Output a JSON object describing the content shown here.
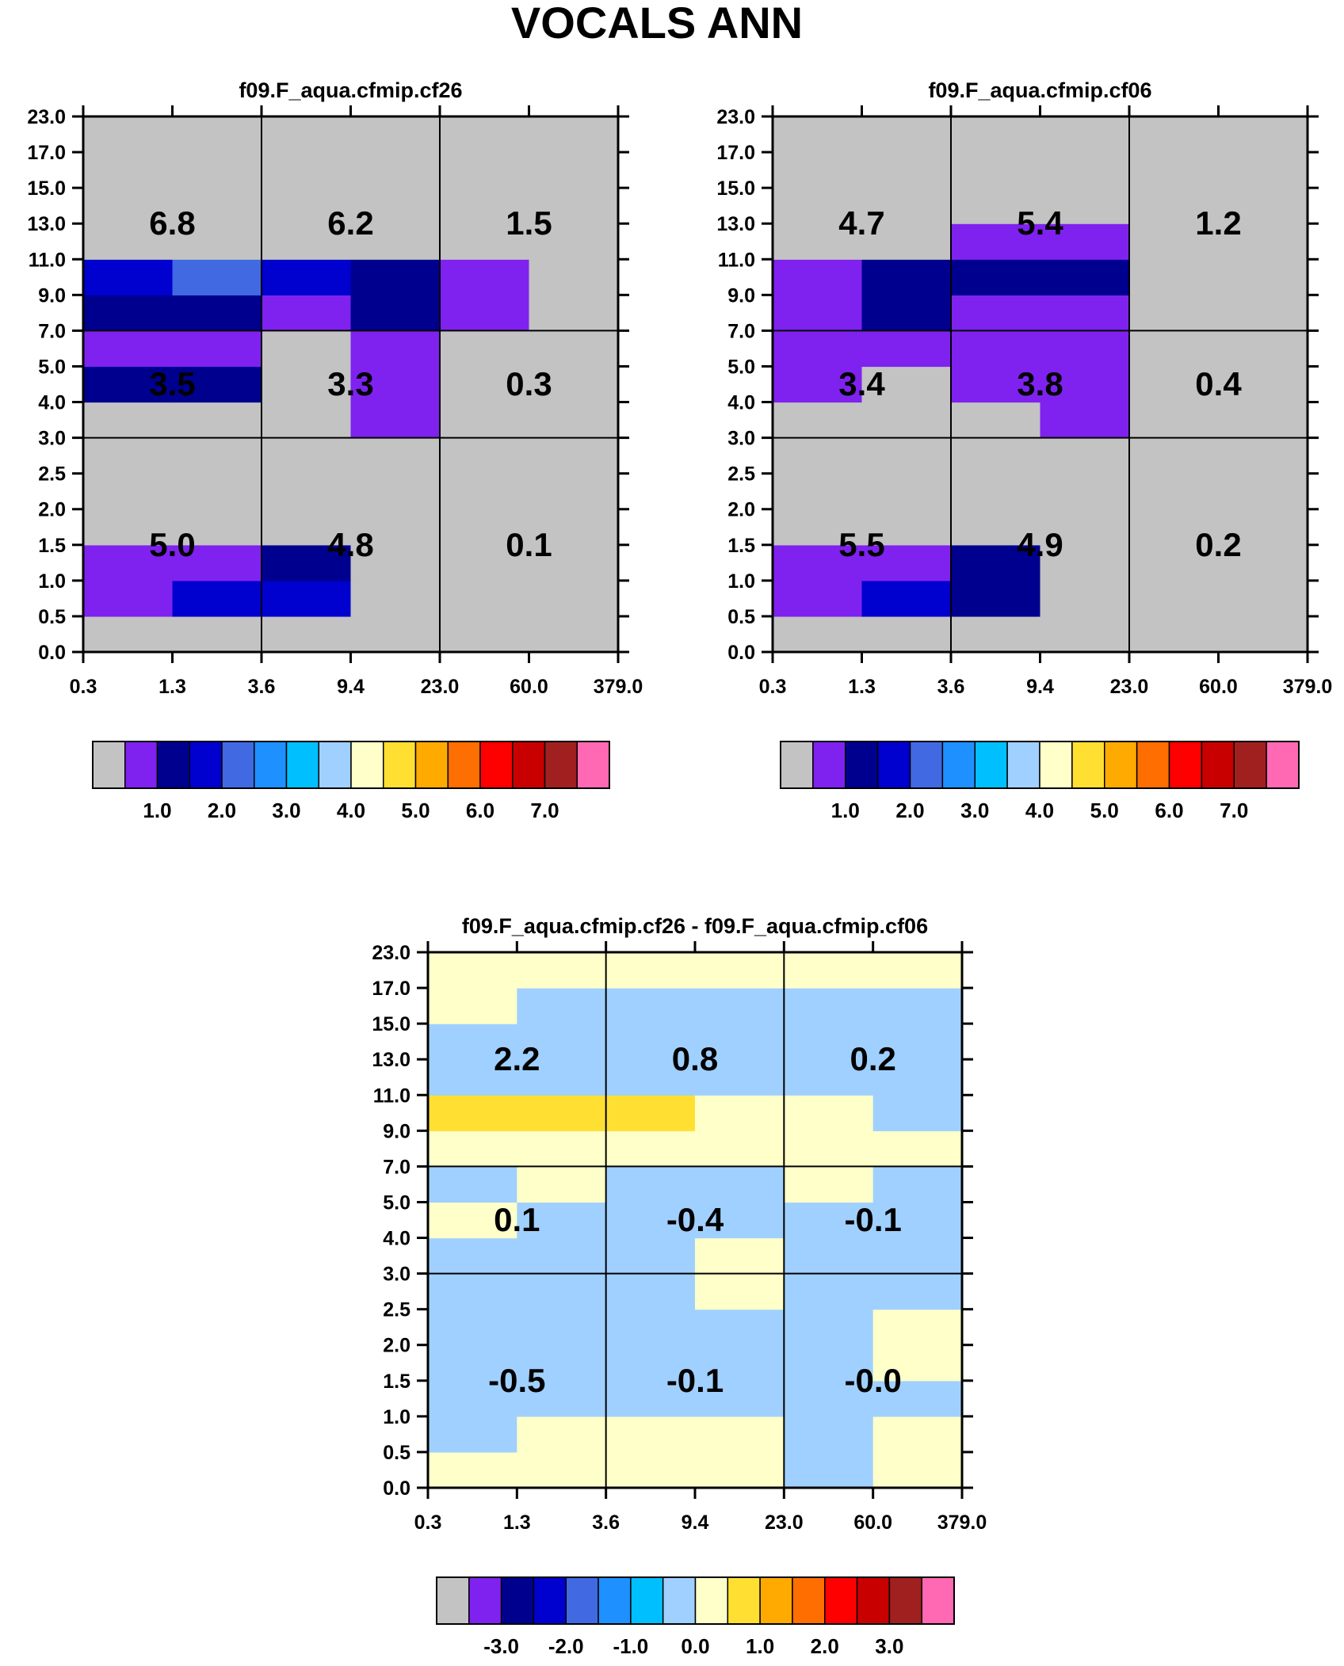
{
  "title": "VOCALS ANN",
  "colors": {
    "palette": [
      "#c3c3c3",
      "#7f22ef",
      "#00008f",
      "#0000cf",
      "#4169e1",
      "#1f90ff",
      "#00bfff",
      "#a0d0ff",
      "#ffffc9",
      "#ffe032",
      "#ffaa00",
      "#ff6e00",
      "#ff0000",
      "#c80000",
      "#a02020",
      "#ff69b4"
    ],
    "cell_outline": "#000000"
  },
  "chart_data": [
    {
      "type": "heatmap",
      "title": "f09.F_aqua.cfmip.cf26",
      "x_ticks": [
        "0.3",
        "1.3",
        "3.6",
        "9.4",
        "23.0",
        "60.0",
        "379.0"
      ],
      "y_ticks": [
        "0.0",
        "0.5",
        "1.0",
        "1.5",
        "2.0",
        "2.5",
        "3.0",
        "4.0",
        "5.0",
        "7.0",
        "9.0",
        "11.0",
        "13.0",
        "15.0",
        "17.0",
        "23.0"
      ],
      "grid_rows": [
        [
          0,
          0,
          0,
          0,
          0,
          0
        ],
        [
          1,
          3,
          3,
          0,
          0,
          0
        ],
        [
          1,
          1,
          2,
          0,
          0,
          0
        ],
        [
          0,
          0,
          0,
          0,
          0,
          0
        ],
        [
          0,
          0,
          0,
          0,
          0,
          0
        ],
        [
          0,
          0,
          0,
          0,
          0,
          0
        ],
        [
          0,
          0,
          0,
          1,
          0,
          0
        ],
        [
          2,
          2,
          0,
          1,
          0,
          0
        ],
        [
          1,
          1,
          0,
          1,
          0,
          0
        ],
        [
          2,
          2,
          1,
          2,
          1,
          0
        ],
        [
          3,
          4,
          3,
          2,
          1,
          0
        ],
        [
          0,
          0,
          0,
          0,
          0,
          0
        ],
        [
          0,
          0,
          0,
          0,
          0,
          0
        ],
        [
          0,
          0,
          0,
          0,
          0,
          0
        ],
        [
          0,
          0,
          0,
          0,
          0,
          0
        ]
      ],
      "sum_labels": [
        [
          "5.0",
          "4.8",
          "0.1"
        ],
        [
          "3.5",
          "3.3",
          "0.3"
        ],
        [
          "6.8",
          "6.2",
          "1.5"
        ]
      ],
      "colorbar_ticks": [
        "1.0",
        "2.0",
        "3.0",
        "4.0",
        "5.0",
        "6.0",
        "7.0"
      ]
    },
    {
      "type": "heatmap",
      "title": "f09.F_aqua.cfmip.cf06",
      "x_ticks": [
        "0.3",
        "1.3",
        "3.6",
        "9.4",
        "23.0",
        "60.0",
        "379.0"
      ],
      "y_ticks": [
        "0.0",
        "0.5",
        "1.0",
        "1.5",
        "2.0",
        "2.5",
        "3.0",
        "4.0",
        "5.0",
        "7.0",
        "9.0",
        "11.0",
        "13.0",
        "15.0",
        "17.0",
        "23.0"
      ],
      "grid_rows": [
        [
          0,
          0,
          0,
          0,
          0,
          0
        ],
        [
          1,
          3,
          2,
          0,
          0,
          0
        ],
        [
          1,
          1,
          2,
          0,
          0,
          0
        ],
        [
          0,
          0,
          0,
          0,
          0,
          0
        ],
        [
          0,
          0,
          0,
          0,
          0,
          0
        ],
        [
          0,
          0,
          0,
          0,
          0,
          0
        ],
        [
          0,
          0,
          0,
          1,
          0,
          0
        ],
        [
          1,
          0,
          1,
          1,
          0,
          0
        ],
        [
          1,
          1,
          1,
          1,
          0,
          0
        ],
        [
          1,
          2,
          1,
          1,
          0,
          0
        ],
        [
          1,
          2,
          2,
          2,
          0,
          0
        ],
        [
          0,
          0,
          1,
          1,
          0,
          0
        ],
        [
          0,
          0,
          0,
          0,
          0,
          0
        ],
        [
          0,
          0,
          0,
          0,
          0,
          0
        ],
        [
          0,
          0,
          0,
          0,
          0,
          0
        ]
      ],
      "sum_labels": [
        [
          "5.5",
          "4.9",
          "0.2"
        ],
        [
          "3.4",
          "3.8",
          "0.4"
        ],
        [
          "4.7",
          "5.4",
          "1.2"
        ]
      ],
      "colorbar_ticks": [
        "1.0",
        "2.0",
        "3.0",
        "4.0",
        "5.0",
        "6.0",
        "7.0"
      ]
    },
    {
      "type": "heatmap",
      "title": "f09.F_aqua.cfmip.cf26 - f09.F_aqua.cfmip.cf06",
      "x_ticks": [
        "0.3",
        "1.3",
        "3.6",
        "9.4",
        "23.0",
        "60.0",
        "379.0"
      ],
      "y_ticks": [
        "0.0",
        "0.5",
        "1.0",
        "1.5",
        "2.0",
        "2.5",
        "3.0",
        "4.0",
        "5.0",
        "7.0",
        "9.0",
        "11.0",
        "13.0",
        "15.0",
        "17.0",
        "23.0"
      ],
      "grid_rows": [
        [
          8,
          8,
          8,
          8,
          7,
          8
        ],
        [
          7,
          8,
          8,
          8,
          7,
          8
        ],
        [
          7,
          7,
          7,
          7,
          7,
          7
        ],
        [
          7,
          7,
          7,
          7,
          7,
          8
        ],
        [
          7,
          7,
          7,
          7,
          7,
          8
        ],
        [
          7,
          7,
          7,
          8,
          7,
          7
        ],
        [
          7,
          7,
          7,
          8,
          7,
          7
        ],
        [
          8,
          7,
          7,
          7,
          7,
          7
        ],
        [
          7,
          8,
          7,
          7,
          8,
          7
        ],
        [
          8,
          8,
          8,
          8,
          8,
          8
        ],
        [
          9,
          9,
          9,
          8,
          8,
          7
        ],
        [
          7,
          7,
          7,
          7,
          7,
          7
        ],
        [
          7,
          7,
          7,
          7,
          7,
          7
        ],
        [
          8,
          7,
          7,
          7,
          7,
          7
        ],
        [
          8,
          8,
          8,
          8,
          8,
          8
        ]
      ],
      "sum_labels": [
        [
          "-0.5",
          "-0.1",
          "-0.0"
        ],
        [
          "0.1",
          "-0.4",
          "-0.1"
        ],
        [
          "2.2",
          "0.8",
          "0.2"
        ]
      ],
      "colorbar_ticks": [
        "-3.0",
        "-2.0",
        "-1.0",
        "0.0",
        "1.0",
        "2.0",
        "3.0"
      ]
    }
  ]
}
